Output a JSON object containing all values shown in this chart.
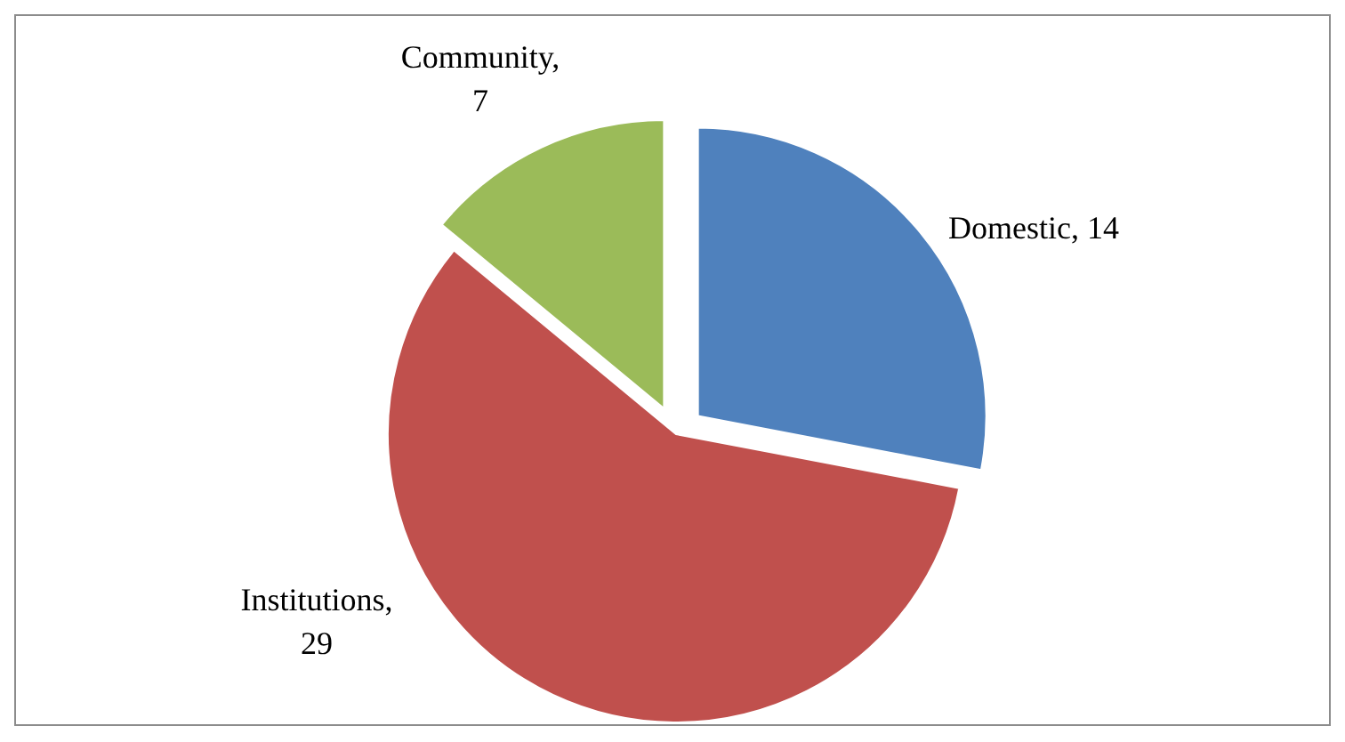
{
  "chart_data": {
    "type": "pie",
    "categories": [
      "Domestic",
      "Institutions",
      "Community"
    ],
    "values": [
      14,
      29,
      7
    ],
    "colors": [
      "#4f81bd",
      "#c0504d",
      "#9bbb59"
    ],
    "value_labels": [
      ", 14",
      ", 29",
      ", 7"
    ],
    "legend": false
  }
}
